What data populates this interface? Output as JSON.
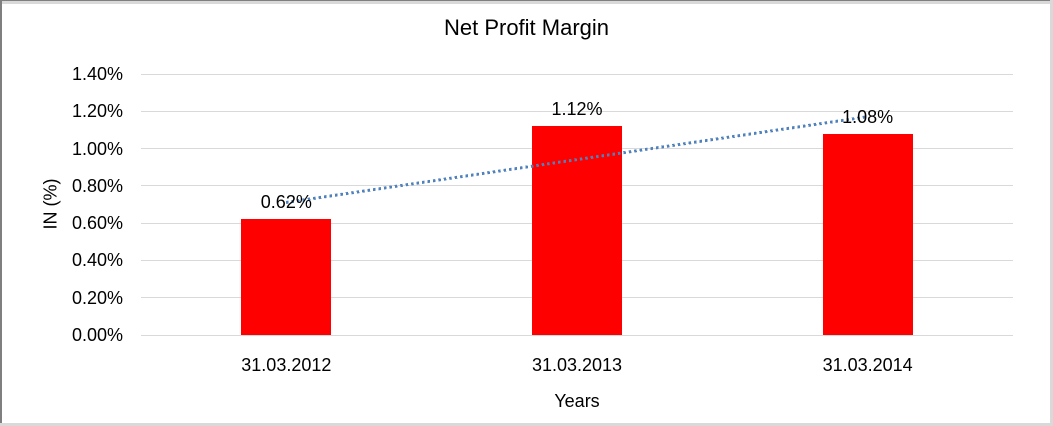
{
  "chart_data": {
    "type": "bar",
    "title": "Net Profit Margin",
    "xlabel": "Years",
    "ylabel": "IN (%)",
    "categories": [
      "31.03.2012",
      "31.03.2013",
      "31.03.2014"
    ],
    "values": [
      0.62,
      1.12,
      1.08
    ],
    "data_labels": [
      "0.62%",
      "1.12%",
      "1.08%"
    ],
    "ylim": [
      0,
      1.4
    ],
    "ytick_step": 0.2,
    "ytick_labels": [
      "0.00%",
      "0.20%",
      "0.40%",
      "0.60%",
      "0.80%",
      "1.00%",
      "1.20%",
      "1.40%"
    ],
    "grid": true,
    "legend": "none",
    "bar_color": "#FF0000",
    "gridline_color": "#D9D9D9",
    "trendline": {
      "type": "linear",
      "style": "dotted",
      "color": "#4F81BD",
      "start_value": 0.71,
      "end_value": 1.17
    }
  }
}
